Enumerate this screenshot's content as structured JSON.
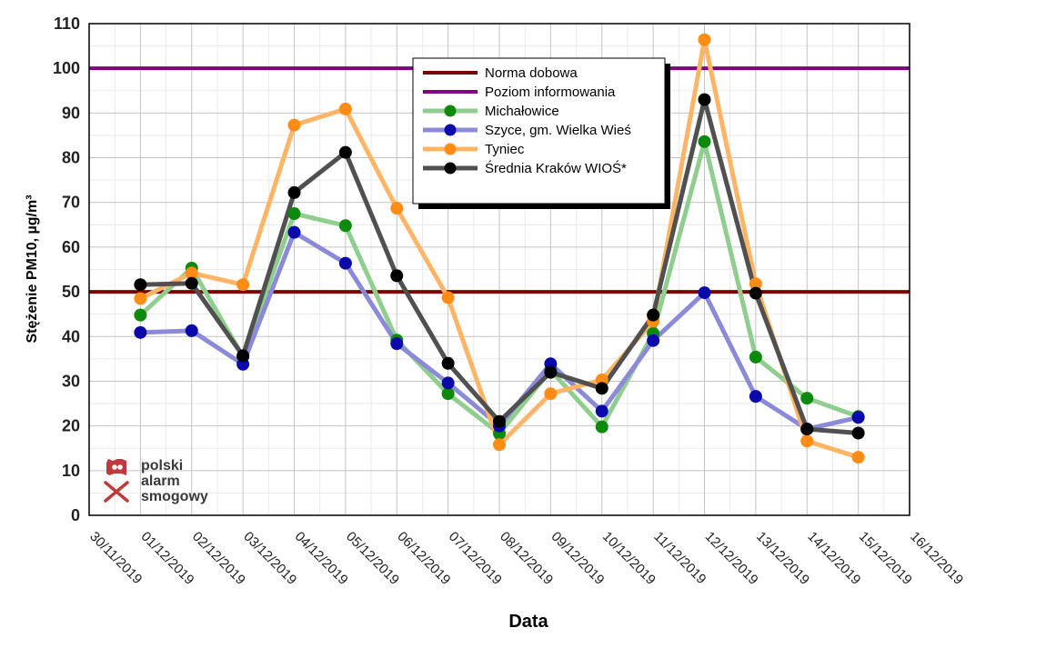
{
  "chart_data": {
    "type": "line",
    "xlabel": "Data",
    "ylabel": "Stężenie PM10, µg/m³",
    "ylim": [
      0,
      110
    ],
    "y_ticks": [
      0,
      10,
      20,
      30,
      40,
      50,
      60,
      70,
      80,
      90,
      100,
      110
    ],
    "x_tick_labels": [
      "30/11/2019",
      "01/12/2019",
      "02/12/2019",
      "03/12/2019",
      "04/12/2019",
      "05/12/2019",
      "06/12/2019",
      "07/12/2019",
      "08/12/2019",
      "09/12/2019",
      "10/12/2019",
      "11/12/2019",
      "12/12/2019",
      "13/12/2019",
      "14/12/2019",
      "15/12/2019",
      "16/12/2019"
    ],
    "grid": true,
    "legend_position": "top-center",
    "thresholds": [
      {
        "name": "Norma dobowa",
        "value": 50,
        "color": "#7a0000"
      },
      {
        "name": "Poziom informowania",
        "value": 100,
        "color": "#800080"
      }
    ],
    "series": [
      {
        "name": "Michałowice",
        "line_color": "#8fce8f",
        "marker_color": "#0d8a0d",
        "values": [
          null,
          44.8,
          55.3,
          35.5,
          67.5,
          64.8,
          39.2,
          27.2,
          18.3,
          32.5,
          19.8,
          40.7,
          83.6,
          35.4,
          26.2,
          22.1
        ]
      },
      {
        "name": "Szyce, gm. Wielka Wieś",
        "line_color": "#8a8ad8",
        "marker_color": "#0a0aaa",
        "values": [
          null,
          40.9,
          41.3,
          33.8,
          63.3,
          56.4,
          38.4,
          29.6,
          20.0,
          33.9,
          23.3,
          39.1,
          49.8,
          26.6,
          19.3,
          21.9
        ]
      },
      {
        "name": "Tyniec",
        "line_color": "#ffb466",
        "marker_color": "#ff8c14",
        "values": [
          null,
          48.5,
          54.2,
          51.6,
          87.3,
          90.9,
          68.7,
          48.7,
          15.8,
          27.2,
          30.3,
          43.4,
          106.4,
          51.8,
          16.6,
          13.0
        ]
      },
      {
        "name": "Średnia Kraków WIOŚ*",
        "line_color": "#505050",
        "marker_color": "#000000",
        "values": [
          null,
          51.6,
          51.9,
          35.7,
          72.2,
          81.2,
          53.6,
          34.0,
          21.0,
          32.0,
          28.4,
          44.8,
          93.0,
          49.7,
          19.3,
          18.4
        ]
      }
    ]
  },
  "logo": {
    "line1": "polski",
    "line2": "alarm",
    "line3": "smogowy",
    "color": "#c0393b"
  }
}
